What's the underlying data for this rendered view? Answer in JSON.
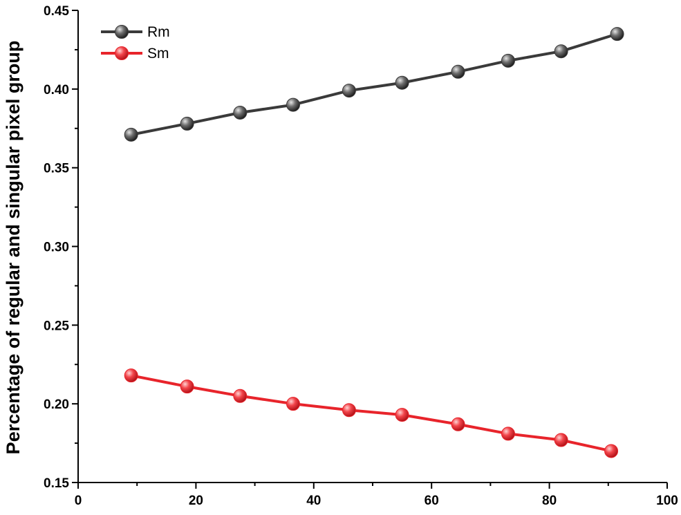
{
  "chart_data": {
    "type": "line",
    "title": "",
    "xlabel": "",
    "ylabel": "Percentage of regular and singular pixel group",
    "xlim": [
      0,
      100
    ],
    "ylim": [
      0.15,
      0.45
    ],
    "x_ticks": [
      "0",
      "20",
      "40",
      "60",
      "80",
      "100"
    ],
    "y_ticks": [
      "0.15",
      "0.20",
      "0.25",
      "0.30",
      "0.35",
      "0.40",
      "0.45"
    ],
    "legend_position": "top-left",
    "grid": false,
    "series": [
      {
        "name": "Rm",
        "color": "#3a3a3a",
        "x": [
          9,
          18.5,
          27.5,
          36.5,
          46,
          55,
          64.5,
          73,
          82,
          91.5
        ],
        "values": [
          0.371,
          0.378,
          0.385,
          0.39,
          0.399,
          0.404,
          0.411,
          0.418,
          0.424,
          0.435
        ]
      },
      {
        "name": "Sm",
        "color": "#e8242b",
        "x": [
          9,
          18.5,
          27.5,
          36.5,
          46,
          55,
          64.5,
          73,
          82,
          90.5
        ],
        "values": [
          0.218,
          0.211,
          0.205,
          0.2,
          0.196,
          0.193,
          0.187,
          0.181,
          0.177,
          0.17
        ]
      }
    ]
  }
}
